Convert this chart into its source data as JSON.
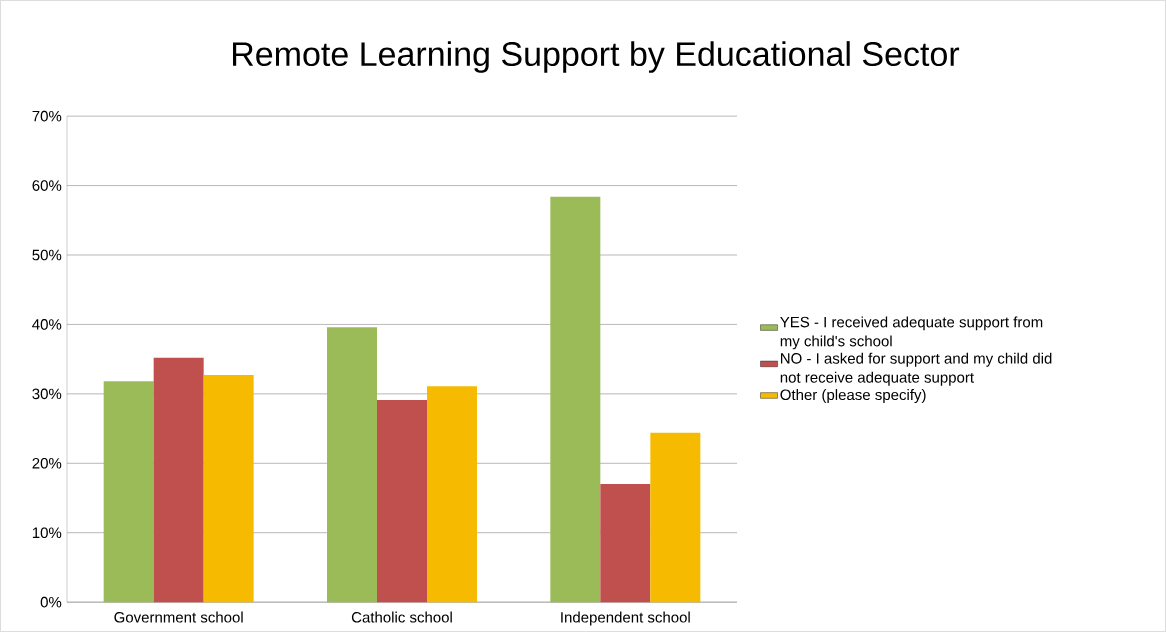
{
  "chart_data": {
    "type": "bar",
    "title": "Remote Learning Support by Educational Sector",
    "categories": [
      "Government school",
      "Catholic school",
      "Independent school"
    ],
    "series": [
      {
        "name": "YES - I received adequate support from my child's school",
        "color": "#9bbb59",
        "values": [
          31.8,
          39.6,
          58.4
        ]
      },
      {
        "name": "NO - I asked for support and my child did not receive adequate support",
        "color": "#c0504d",
        "values": [
          35.2,
          29.1,
          17.0
        ]
      },
      {
        "name": "Other (please specify)",
        "color": "#f6bb00",
        "values": [
          32.7,
          31.1,
          24.4
        ]
      }
    ],
    "ylim": [
      0,
      70
    ],
    "yticks": [
      {
        "value": 0,
        "label": "0%"
      },
      {
        "value": 10,
        "label": "10%"
      },
      {
        "value": 20,
        "label": "20%"
      },
      {
        "value": 30,
        "label": "30%"
      },
      {
        "value": 40,
        "label": "40%"
      },
      {
        "value": 50,
        "label": "50%"
      },
      {
        "value": 60,
        "label": "60%"
      },
      {
        "value": 70,
        "label": "70%"
      }
    ],
    "grid": "y",
    "legend": "right"
  }
}
